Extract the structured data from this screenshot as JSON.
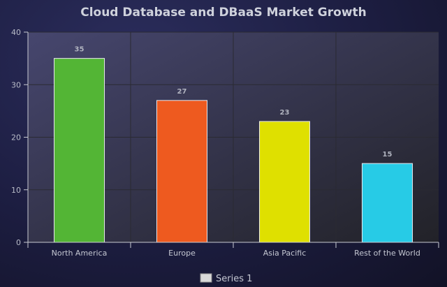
{
  "chart_data": {
    "type": "bar",
    "title": "Cloud Database and DBaaS Market Growth",
    "categories": [
      "North America",
      "Europe",
      "Asia Pacific",
      "Rest of the World"
    ],
    "series": [
      {
        "name": "Series 1",
        "values": [
          35,
          27,
          23,
          15
        ],
        "colors": [
          "#53b535",
          "#ee5a1f",
          "#dfe000",
          "#27cbe6"
        ]
      }
    ],
    "yticks": [
      0,
      10,
      20,
      30,
      40
    ],
    "ylim": [
      0,
      40
    ],
    "xlabel": "",
    "ylabel": "",
    "grid": true,
    "legend": "bottom-center",
    "legend_swatch_color": "#d9d9d9"
  }
}
